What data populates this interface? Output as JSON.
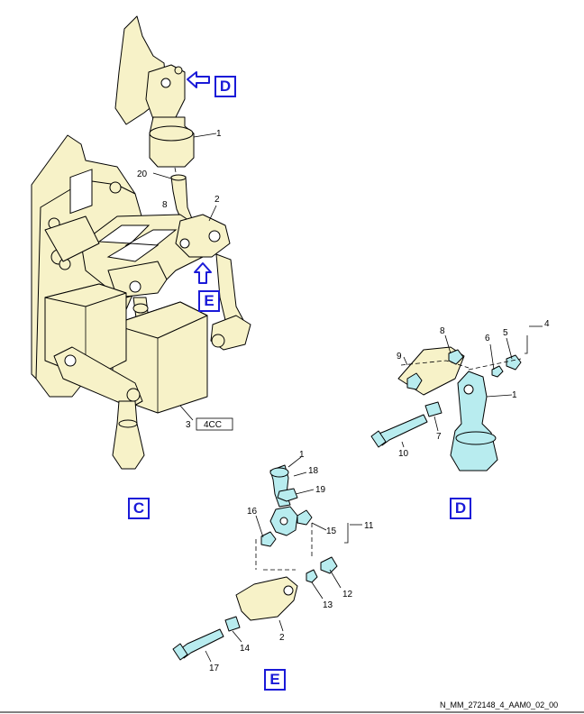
{
  "view_labels": {
    "c": "C",
    "d": "D",
    "e": "E"
  },
  "arrow_labels": {
    "d": "D",
    "e": "E"
  },
  "component_tag": "4CC",
  "reference_code": "N_MM_272148_4_AAM0_02_00",
  "callouts": {
    "c1": "1",
    "c20": "20",
    "c2": "2",
    "c3": "3",
    "d1": "1",
    "d4": "4",
    "d5": "5",
    "d6": "6",
    "d7": "7",
    "d8": "8",
    "d9": "9",
    "d10": "10",
    "e1": "1",
    "e2": "2",
    "e11": "11",
    "e12": "12",
    "e13": "13",
    "e14": "14",
    "e15": "15",
    "e16": "16",
    "e17": "17",
    "e18": "18",
    "e19": "19"
  },
  "colors": {
    "structure": "#f7f2c8",
    "actuator": "#f7f2c8",
    "highlight": "#b8ecef",
    "arrow": "#1a1ad8",
    "line": "#000000"
  }
}
